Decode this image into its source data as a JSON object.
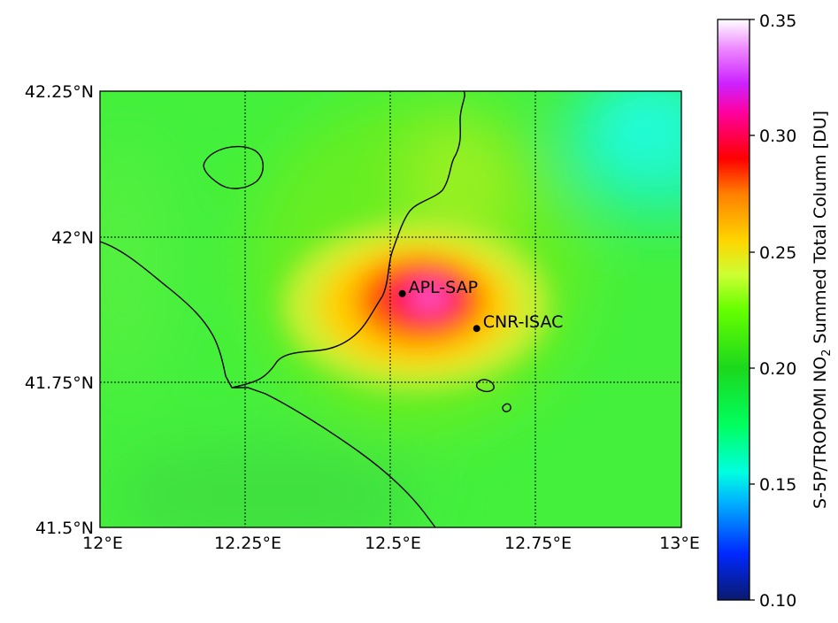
{
  "map": {
    "lon_ticks": [
      "12°E",
      "12.25°E",
      "12.5°E",
      "12.75°E",
      "13°E"
    ],
    "lat_ticks": [
      "42.25°N",
      "42°N",
      "41.75°N",
      "41.5°N"
    ],
    "lon_range": [
      12.0,
      13.0
    ],
    "lat_range": [
      41.5,
      42.25
    ],
    "grid": true,
    "sites": [
      {
        "name": "APL-SAP",
        "lon": 12.52,
        "lat": 41.902
      },
      {
        "name": "CNR-ISAC",
        "lon": 12.648,
        "lat": 41.842
      }
    ],
    "field": {
      "background": 0.2,
      "plume_center": {
        "lon": 12.56,
        "lat": 41.89
      },
      "peak_value": 0.32,
      "low_region_north_east": 0.16
    }
  },
  "colorbar": {
    "label_prefix": "S-5P/TROPOMI NO",
    "label_subscript": "2",
    "label_suffix": " Summed Total Column [DU]",
    "ticks": [
      "0.10",
      "0.15",
      "0.20",
      "0.25",
      "0.30",
      "0.35"
    ],
    "range": [
      0.1,
      0.35
    ],
    "colormap": "gist_ncar-like",
    "colors": [
      "#0a1a6e",
      "#0033ff",
      "#00ffff",
      "#00ff40",
      "#22dd00",
      "#ccff33",
      "#ffcc00",
      "#ff6600",
      "#ff0000",
      "#ff00cc",
      "#cc33ff",
      "#ffffff"
    ]
  }
}
